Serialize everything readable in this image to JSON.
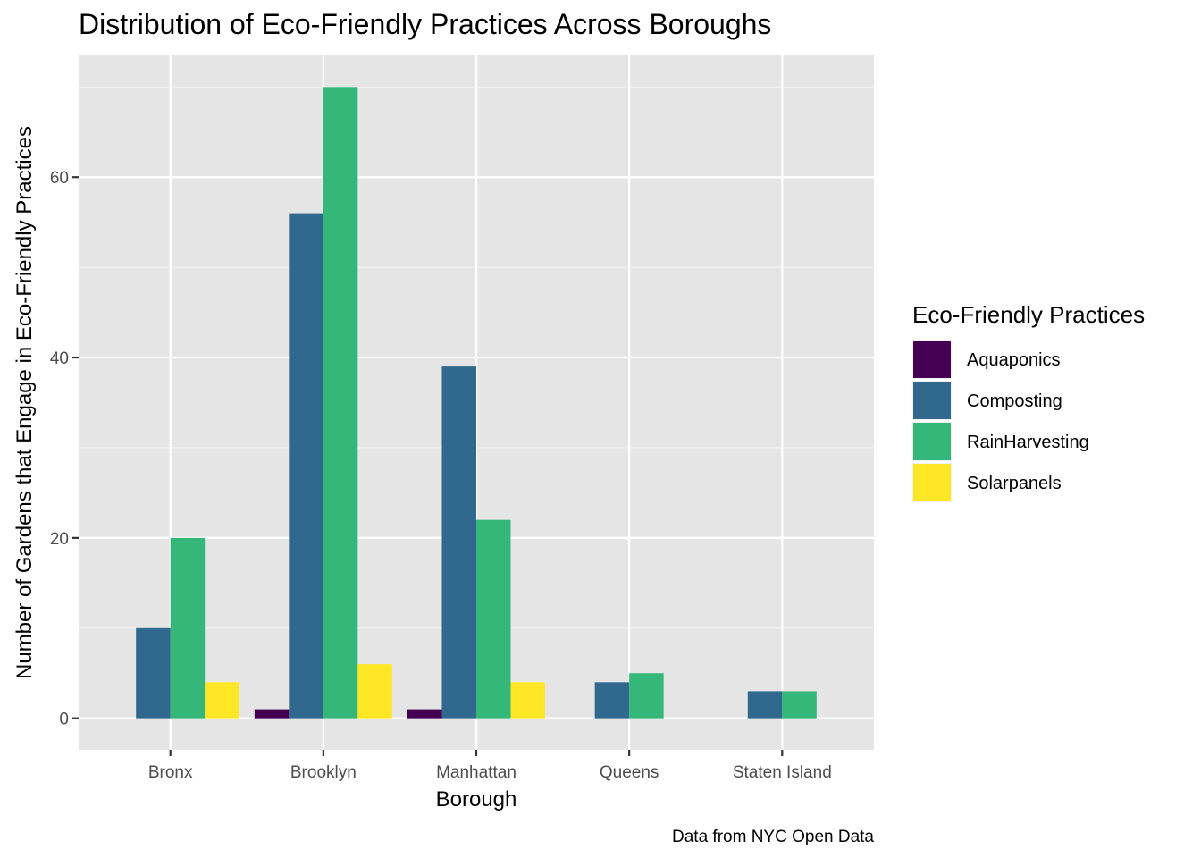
{
  "chart_data": {
    "type": "bar",
    "title": "Distribution of Eco-Friendly Practices Across Boroughs",
    "xlabel": "Borough",
    "ylabel": "Number of Gardens that Engage in Eco-Friendly Practices",
    "caption": "Data from NYC Open Data",
    "categories": [
      "Bronx",
      "Brooklyn",
      "Manhattan",
      "Queens",
      "Staten Island"
    ],
    "ylim": [
      -3.5,
      73.5
    ],
    "yticks": [
      0,
      20,
      40,
      60
    ],
    "grid": true,
    "legend": {
      "title": "Eco-Friendly Practices",
      "position": "right"
    },
    "series": [
      {
        "name": "Aquaponics",
        "color": "#440154",
        "values": [
          null,
          1,
          1,
          null,
          null
        ]
      },
      {
        "name": "Composting",
        "color": "#31688E",
        "values": [
          10,
          56,
          39,
          4,
          3
        ]
      },
      {
        "name": "RainHarvesting",
        "color": "#35B779",
        "values": [
          20,
          70,
          22,
          5,
          3
        ]
      },
      {
        "name": "Solarpanels",
        "color": "#FDE725",
        "values": [
          4,
          6,
          4,
          null,
          null
        ]
      }
    ]
  }
}
